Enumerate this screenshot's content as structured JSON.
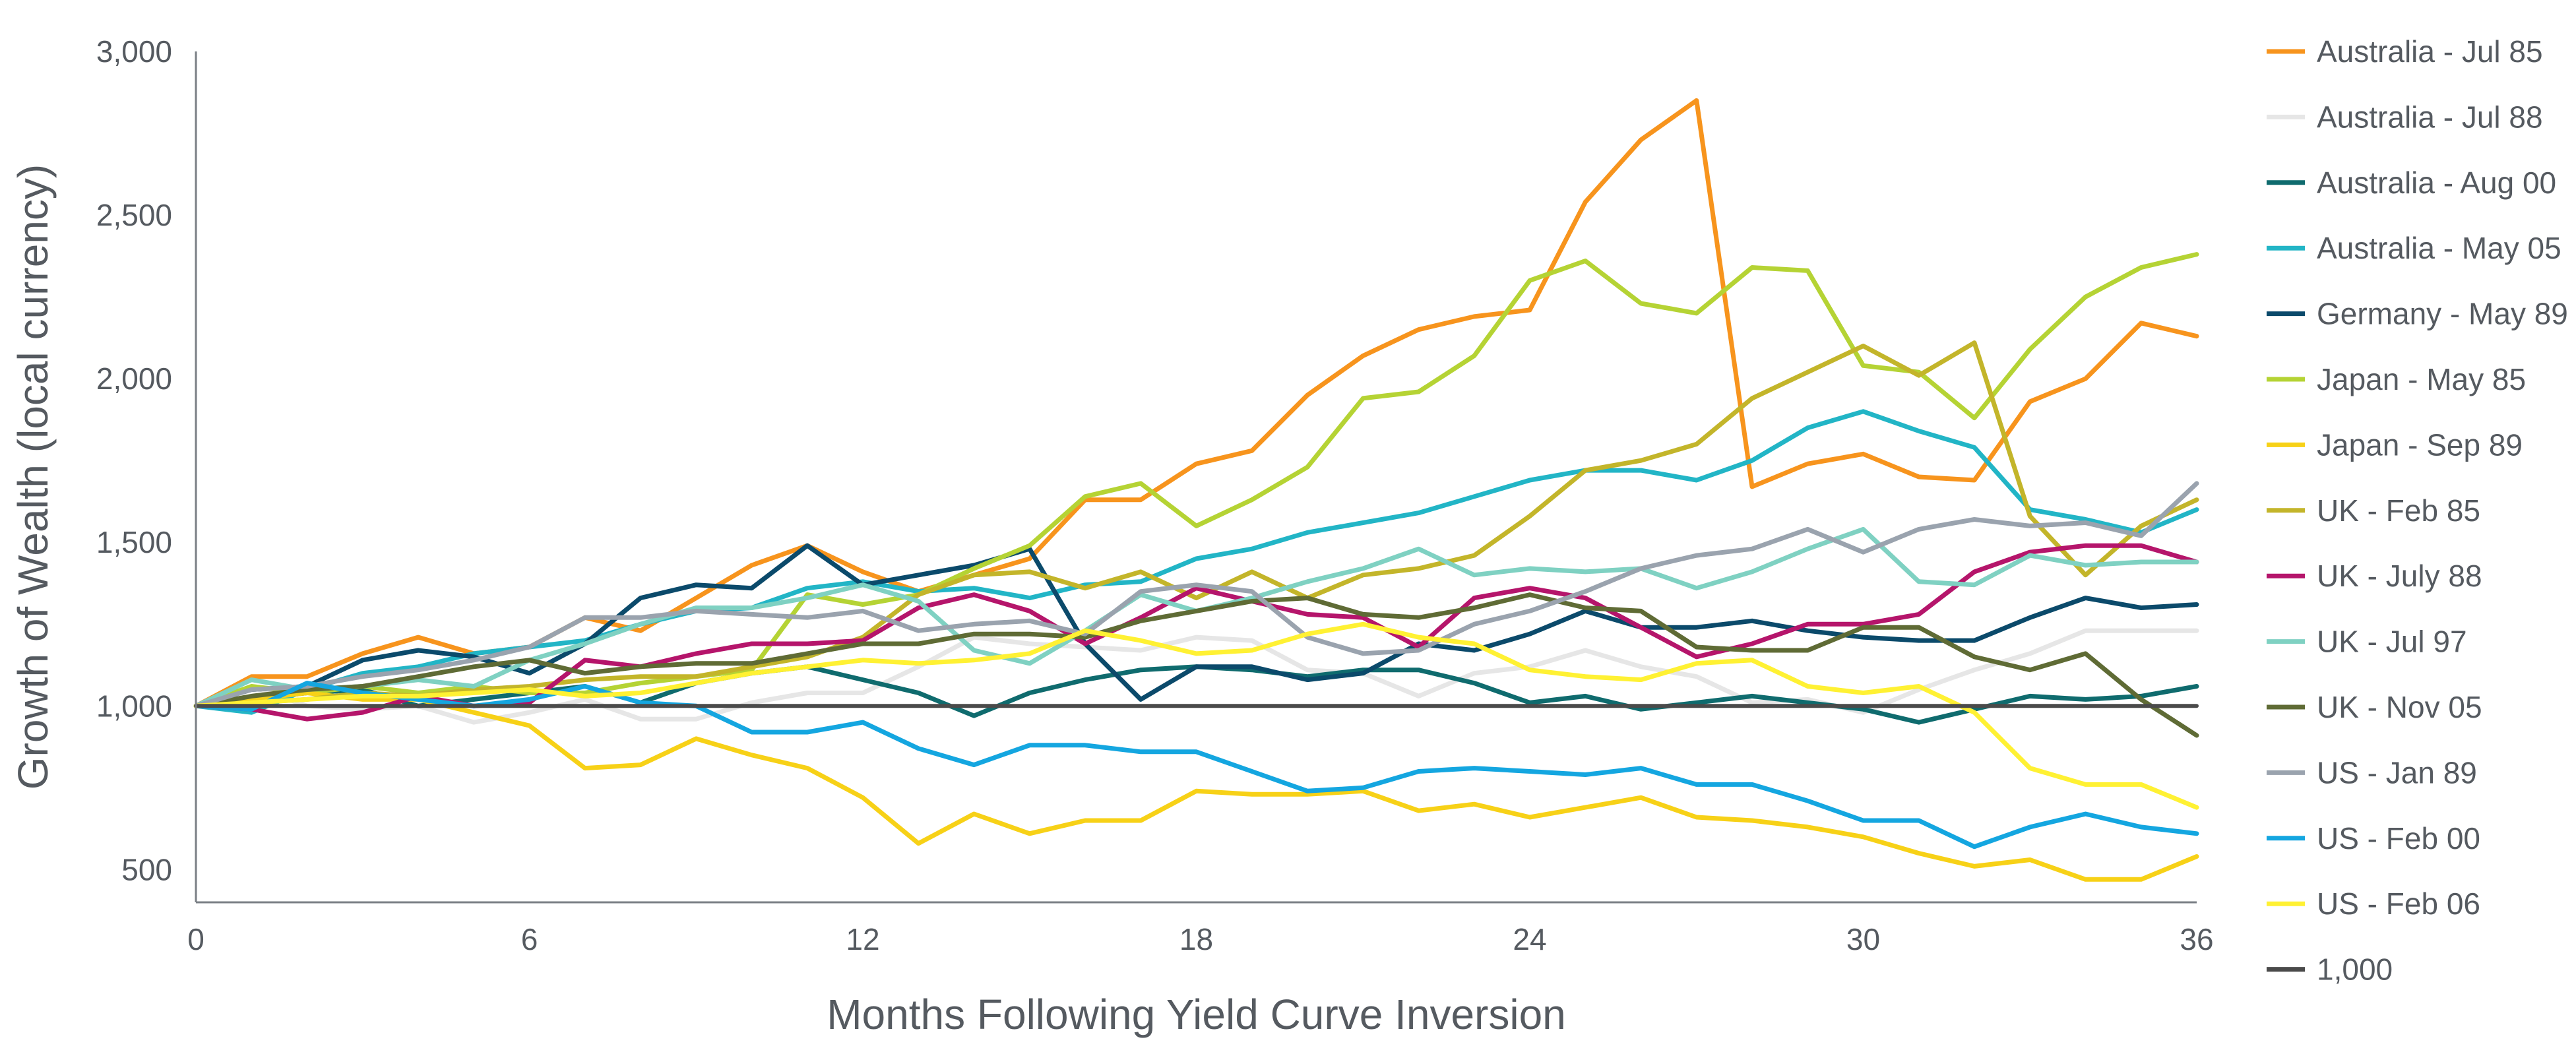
{
  "chart_data": {
    "type": "line",
    "title": "",
    "xlabel": "Months Following Yield Curve Inversion",
    "ylabel": "Growth of Wealth (local currency)",
    "xlim": [
      0,
      36
    ],
    "ylim": [
      400,
      3000
    ],
    "xticks": [
      0,
      6,
      12,
      18,
      24,
      30,
      36
    ],
    "xtick_labels": [
      "0",
      "6",
      "12",
      "18",
      "24",
      "30",
      "36"
    ],
    "yticks": [
      500,
      1000,
      1500,
      2000,
      2500,
      3000
    ],
    "ytick_labels": [
      "500",
      "1,000",
      "1,500",
      "2,000",
      "2,500",
      "3,000"
    ],
    "grid": false,
    "legend_position": "right",
    "x": [
      0,
      1,
      2,
      3,
      4,
      5,
      6,
      7,
      8,
      9,
      10,
      11,
      12,
      13,
      14,
      15,
      16,
      17,
      18,
      19,
      20,
      21,
      22,
      23,
      24,
      25,
      26,
      27,
      28,
      29,
      30,
      31,
      32,
      33,
      34,
      35,
      36
    ],
    "series": [
      {
        "name": "Australia - Jul 85",
        "color": "#f7941d",
        "values": [
          1000,
          1090,
          1090,
          1160,
          1210,
          1160,
          1180,
          1270,
          1230,
          1330,
          1430,
          1490,
          1410,
          1350,
          1400,
          1450,
          1630,
          1630,
          1740,
          1780,
          1950,
          2070,
          2150,
          2190,
          2210,
          2540,
          2730,
          2850,
          1670,
          1740,
          1770,
          1700,
          1690,
          1930,
          2000,
          2170,
          2130
        ]
      },
      {
        "name": "Australia - Jul 88",
        "color": "#e6e6e6",
        "values": [
          1000,
          1060,
          1000,
          990,
          1000,
          950,
          980,
          1020,
          960,
          960,
          1010,
          1040,
          1040,
          1120,
          1210,
          1190,
          1180,
          1170,
          1210,
          1200,
          1110,
          1100,
          1030,
          1100,
          1120,
          1170,
          1120,
          1090,
          1010,
          1020,
          980,
          1050,
          1110,
          1160,
          1230,
          1230,
          1230
        ]
      },
      {
        "name": "Australia - Aug 00",
        "color": "#0f6b6e",
        "values": [
          1000,
          1020,
          1040,
          1050,
          1000,
          1020,
          1040,
          1060,
          1010,
          1070,
          1100,
          1120,
          1080,
          1040,
          970,
          1040,
          1080,
          1110,
          1120,
          1110,
          1090,
          1110,
          1110,
          1070,
          1010,
          1030,
          990,
          1010,
          1030,
          1010,
          990,
          950,
          990,
          1030,
          1020,
          1030,
          1060
        ]
      },
      {
        "name": "Australia - May 05",
        "color": "#22b5c6",
        "values": [
          1000,
          980,
          1050,
          1100,
          1120,
          1160,
          1180,
          1200,
          1250,
          1290,
          1300,
          1360,
          1380,
          1350,
          1360,
          1330,
          1370,
          1380,
          1450,
          1480,
          1530,
          1560,
          1590,
          1640,
          1690,
          1720,
          1720,
          1690,
          1750,
          1850,
          1900,
          1840,
          1790,
          1600,
          1570,
          1530,
          1600
        ]
      },
      {
        "name": "Germany - May 89",
        "color": "#0b4a6b",
        "values": [
          1000,
          1050,
          1060,
          1140,
          1170,
          1150,
          1100,
          1190,
          1330,
          1370,
          1360,
          1490,
          1370,
          1400,
          1430,
          1480,
          1190,
          1020,
          1120,
          1120,
          1080,
          1100,
          1190,
          1170,
          1220,
          1290,
          1240,
          1240,
          1260,
          1230,
          1210,
          1200,
          1200,
          1270,
          1330,
          1300,
          1310
        ]
      },
      {
        "name": "Japan - May 85",
        "color": "#b5d334",
        "values": [
          1000,
          1060,
          1040,
          1060,
          1040,
          1060,
          1040,
          1040,
          1070,
          1090,
          1110,
          1340,
          1310,
          1340,
          1420,
          1490,
          1640,
          1680,
          1550,
          1630,
          1730,
          1940,
          1960,
          2070,
          2300,
          2360,
          2230,
          2200,
          2340,
          2330,
          2040,
          2020,
          1880,
          2090,
          2250,
          2340,
          2380
        ]
      },
      {
        "name": "Japan - Sep 89",
        "color": "#f7d117",
        "values": [
          1000,
          1020,
          1040,
          1020,
          1020,
          980,
          940,
          810,
          820,
          900,
          850,
          810,
          720,
          580,
          670,
          610,
          650,
          650,
          740,
          730,
          730,
          740,
          680,
          700,
          660,
          690,
          720,
          660,
          650,
          630,
          600,
          550,
          510,
          530,
          470,
          470,
          540
        ]
      },
      {
        "name": "UK - Feb 85",
        "color": "#c3b52a",
        "values": [
          1000,
          1010,
          1020,
          1040,
          1030,
          1050,
          1060,
          1080,
          1090,
          1090,
          1120,
          1150,
          1210,
          1340,
          1400,
          1410,
          1360,
          1410,
          1330,
          1410,
          1330,
          1400,
          1420,
          1460,
          1580,
          1720,
          1750,
          1800,
          1940,
          2020,
          2100,
          2010,
          2110,
          1580,
          1400,
          1550,
          1630
        ]
      },
      {
        "name": "UK - July 88",
        "color": "#b5156b",
        "values": [
          1000,
          990,
          960,
          980,
          1030,
          1000,
          1010,
          1140,
          1120,
          1160,
          1190,
          1190,
          1200,
          1300,
          1340,
          1290,
          1190,
          1270,
          1360,
          1320,
          1280,
          1270,
          1180,
          1330,
          1360,
          1330,
          1240,
          1150,
          1190,
          1250,
          1250,
          1280,
          1410,
          1470,
          1490,
          1490,
          1440
        ]
      },
      {
        "name": "UK - Jul 97",
        "color": "#7fd1c2",
        "values": [
          1000,
          1080,
          1050,
          1060,
          1080,
          1060,
          1140,
          1190,
          1250,
          1300,
          1300,
          1330,
          1370,
          1320,
          1170,
          1130,
          1230,
          1340,
          1290,
          1330,
          1380,
          1420,
          1480,
          1400,
          1420,
          1410,
          1420,
          1360,
          1410,
          1480,
          1540,
          1380,
          1370,
          1460,
          1430,
          1440,
          1440
        ]
      },
      {
        "name": "UK - Nov 05",
        "color": "#5f6b35",
        "values": [
          1000,
          1030,
          1050,
          1060,
          1090,
          1120,
          1140,
          1100,
          1120,
          1130,
          1130,
          1160,
          1190,
          1190,
          1220,
          1220,
          1210,
          1260,
          1290,
          1320,
          1330,
          1280,
          1270,
          1300,
          1340,
          1300,
          1290,
          1180,
          1170,
          1170,
          1240,
          1240,
          1150,
          1110,
          1160,
          1020,
          910
        ]
      },
      {
        "name": "US - Jan 89",
        "color": "#9aa3ae",
        "values": [
          1000,
          1050,
          1060,
          1090,
          1110,
          1140,
          1180,
          1270,
          1270,
          1290,
          1280,
          1270,
          1290,
          1230,
          1250,
          1260,
          1220,
          1350,
          1370,
          1350,
          1210,
          1160,
          1170,
          1250,
          1290,
          1350,
          1420,
          1460,
          1480,
          1540,
          1470,
          1540,
          1570,
          1550,
          1560,
          1520,
          1680
        ]
      },
      {
        "name": "US - Feb 00",
        "color": "#14a6e0",
        "values": [
          1000,
          990,
          1070,
          1040,
          1020,
          1000,
          1020,
          1060,
          1010,
          1000,
          920,
          920,
          950,
          870,
          820,
          880,
          880,
          860,
          860,
          800,
          740,
          750,
          800,
          810,
          800,
          790,
          810,
          760,
          760,
          710,
          650,
          650,
          570,
          630,
          670,
          630,
          610
        ]
      },
      {
        "name": "US - Feb 06",
        "color": "#fff133",
        "values": [
          1000,
          1010,
          1020,
          1030,
          1030,
          1040,
          1050,
          1030,
          1040,
          1070,
          1100,
          1120,
          1140,
          1130,
          1140,
          1160,
          1230,
          1200,
          1160,
          1170,
          1220,
          1250,
          1210,
          1190,
          1110,
          1090,
          1080,
          1130,
          1140,
          1060,
          1040,
          1060,
          980,
          810,
          760,
          760,
          690
        ]
      },
      {
        "name": "1,000",
        "color": "#4a4a4a",
        "values": [
          1000,
          1000,
          1000,
          1000,
          1000,
          1000,
          1000,
          1000,
          1000,
          1000,
          1000,
          1000,
          1000,
          1000,
          1000,
          1000,
          1000,
          1000,
          1000,
          1000,
          1000,
          1000,
          1000,
          1000,
          1000,
          1000,
          1000,
          1000,
          1000,
          1000,
          1000,
          1000,
          1000,
          1000,
          1000,
          1000,
          1000
        ]
      }
    ]
  }
}
